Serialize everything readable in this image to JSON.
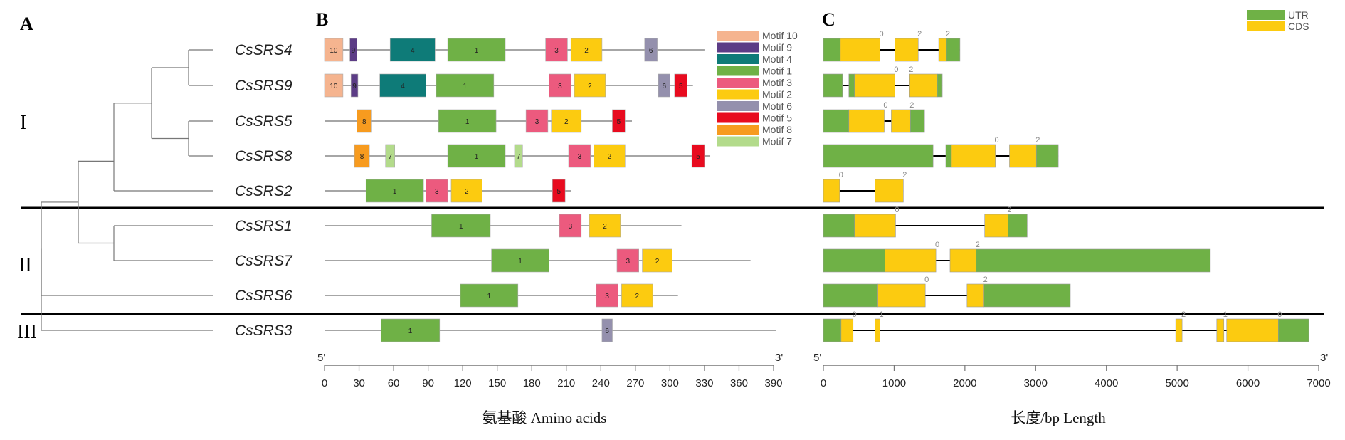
{
  "panels": {
    "A": "A",
    "B": "B",
    "C": "C"
  },
  "clades": [
    "I",
    "II",
    "III"
  ],
  "genes": [
    "CsSRS4",
    "CsSRS9",
    "CsSRS5",
    "CsSRS8",
    "CsSRS2",
    "CsSRS1",
    "CsSRS7",
    "CsSRS6",
    "CsSRS3"
  ],
  "chart_data": [
    {
      "type": "diagram",
      "panel": "A",
      "tree": "((((CsSRS4,CsSRS9),(CsSRS5,CsSRS8)),CsSRS2),(CsSRS1,CsSRS7)),CsSRS6),CsSRS3",
      "clades": [
        {
          "label": "I",
          "genes": [
            "CsSRS4",
            "CsSRS9",
            "CsSRS5",
            "CsSRS8",
            "CsSRS2"
          ]
        },
        {
          "label": "II",
          "genes": [
            "CsSRS1",
            "CsSRS7",
            "CsSRS6"
          ]
        },
        {
          "label": "III",
          "genes": [
            "CsSRS3"
          ]
        }
      ]
    },
    {
      "type": "bar",
      "panel": "B",
      "xlabel": "氨基酸 Amino acids",
      "xlim": [
        0,
        390
      ],
      "xticks": [
        0,
        30,
        60,
        90,
        120,
        150,
        180,
        210,
        240,
        270,
        300,
        330,
        360,
        390
      ],
      "start_label": "5'",
      "end_label": "3'",
      "legend": [
        {
          "name": "Motif 10",
          "id": "10",
          "color": "#f5b48f"
        },
        {
          "name": "Motif 9",
          "id": "9",
          "color": "#5c3c86"
        },
        {
          "name": "Motif 4",
          "id": "4",
          "color": "#0e7b78"
        },
        {
          "name": "Motif 1",
          "id": "1",
          "color": "#6fb146"
        },
        {
          "name": "Motif 3",
          "id": "3",
          "color": "#ec5a7e"
        },
        {
          "name": "Motif 2",
          "id": "2",
          "color": "#fccb10"
        },
        {
          "name": "Motif 6",
          "id": "6",
          "color": "#9490ad"
        },
        {
          "name": "Motif 5",
          "id": "5",
          "color": "#e80b1f"
        },
        {
          "name": "Motif 8",
          "id": "8",
          "color": "#f79b1f"
        },
        {
          "name": "Motif 7",
          "id": "7",
          "color": "#b3db8b"
        }
      ],
      "proteins": [
        {
          "gene": "CsSRS4",
          "length": 330,
          "motifs": [
            {
              "id": "10",
              "start": 0,
              "end": 16
            },
            {
              "id": "9",
              "start": 22,
              "end": 28
            },
            {
              "id": "4",
              "start": 57,
              "end": 96
            },
            {
              "id": "1",
              "start": 107,
              "end": 157
            },
            {
              "id": "3",
              "start": 192,
              "end": 211
            },
            {
              "id": "2",
              "start": 214,
              "end": 241
            },
            {
              "id": "6",
              "start": 278,
              "end": 289
            }
          ]
        },
        {
          "gene": "CsSRS9",
          "length": 320,
          "motifs": [
            {
              "id": "10",
              "start": 0,
              "end": 16
            },
            {
              "id": "9",
              "start": 23,
              "end": 29
            },
            {
              "id": "4",
              "start": 48,
              "end": 88
            },
            {
              "id": "1",
              "start": 97,
              "end": 147
            },
            {
              "id": "3",
              "start": 195,
              "end": 214
            },
            {
              "id": "2",
              "start": 217,
              "end": 244
            },
            {
              "id": "6",
              "start": 290,
              "end": 300
            },
            {
              "id": "5",
              "start": 304,
              "end": 315
            }
          ]
        },
        {
          "gene": "CsSRS5",
          "length": 267,
          "motifs": [
            {
              "id": "8",
              "start": 28,
              "end": 41
            },
            {
              "id": "1",
              "start": 99,
              "end": 149
            },
            {
              "id": "3",
              "start": 175,
              "end": 194
            },
            {
              "id": "2",
              "start": 197,
              "end": 223
            },
            {
              "id": "5",
              "start": 250,
              "end": 261
            }
          ]
        },
        {
          "gene": "CsSRS8",
          "length": 335,
          "motifs": [
            {
              "id": "8",
              "start": 26,
              "end": 39
            },
            {
              "id": "7",
              "start": 53,
              "end": 61
            },
            {
              "id": "1",
              "start": 107,
              "end": 157
            },
            {
              "id": "7",
              "start": 165,
              "end": 172
            },
            {
              "id": "3",
              "start": 212,
              "end": 231
            },
            {
              "id": "2",
              "start": 234,
              "end": 261
            },
            {
              "id": "5",
              "start": 319,
              "end": 330
            }
          ]
        },
        {
          "gene": "CsSRS2",
          "length": 214,
          "motifs": [
            {
              "id": "1",
              "start": 36,
              "end": 86
            },
            {
              "id": "3",
              "start": 88,
              "end": 107
            },
            {
              "id": "2",
              "start": 110,
              "end": 137
            },
            {
              "id": "5",
              "start": 198,
              "end": 209
            }
          ]
        },
        {
          "gene": "CsSRS1",
          "length": 310,
          "motifs": [
            {
              "id": "1",
              "start": 93,
              "end": 144
            },
            {
              "id": "3",
              "start": 204,
              "end": 223
            },
            {
              "id": "2",
              "start": 230,
              "end": 257
            }
          ]
        },
        {
          "gene": "CsSRS7",
          "length": 370,
          "motifs": [
            {
              "id": "1",
              "start": 145,
              "end": 195
            },
            {
              "id": "3",
              "start": 254,
              "end": 273
            },
            {
              "id": "2",
              "start": 276,
              "end": 302
            }
          ]
        },
        {
          "gene": "CsSRS6",
          "length": 307,
          "motifs": [
            {
              "id": "1",
              "start": 118,
              "end": 168
            },
            {
              "id": "3",
              "start": 236,
              "end": 255
            },
            {
              "id": "2",
              "start": 258,
              "end": 285
            }
          ]
        },
        {
          "gene": "CsSRS3",
          "length": 392,
          "motifs": [
            {
              "id": "1",
              "start": 49,
              "end": 100
            },
            {
              "id": "6",
              "start": 241,
              "end": 250
            }
          ]
        }
      ]
    },
    {
      "type": "bar",
      "panel": "C",
      "xlabel": "长度/bp Length",
      "xlim": [
        0,
        7000
      ],
      "xticks": [
        0,
        1000,
        2000,
        3000,
        4000,
        5000,
        6000,
        7000
      ],
      "start_label": "5'",
      "end_label": "3'",
      "legend": [
        {
          "name": "UTR",
          "color": "#6fb146"
        },
        {
          "name": "CDS",
          "color": "#fccb10"
        }
      ],
      "genes": [
        {
          "gene": "CsSRS4",
          "features": [
            {
              "type": "UTR",
              "start": 0,
              "end": 240
            },
            {
              "type": "CDS",
              "start": 240,
              "end": 800
            },
            {
              "type": "CDS",
              "start": 1010,
              "end": 1340
            },
            {
              "type": "CDS",
              "start": 1630,
              "end": 1740
            },
            {
              "type": "UTR",
              "start": 1740,
              "end": 1930
            }
          ],
          "phases": [
            {
              "pos": 820,
              "label": "0"
            },
            {
              "pos": 1360,
              "label": "2"
            },
            {
              "pos": 1760,
              "label": "2"
            }
          ]
        },
        {
          "gene": "CsSRS9",
          "features": [
            {
              "type": "UTR",
              "start": 0,
              "end": 270
            },
            {
              "type": "UTR",
              "start": 360,
              "end": 440
            },
            {
              "type": "CDS",
              "start": 440,
              "end": 1010
            },
            {
              "type": "CDS",
              "start": 1220,
              "end": 1610
            },
            {
              "type": "UTR",
              "start": 1610,
              "end": 1680
            }
          ],
          "phases": [
            {
              "pos": 1030,
              "label": "0"
            },
            {
              "pos": 1240,
              "label": "2"
            }
          ]
        },
        {
          "gene": "CsSRS5",
          "features": [
            {
              "type": "UTR",
              "start": 0,
              "end": 360
            },
            {
              "type": "CDS",
              "start": 360,
              "end": 860
            },
            {
              "type": "CDS",
              "start": 960,
              "end": 1230
            },
            {
              "type": "UTR",
              "start": 1230,
              "end": 1430
            }
          ],
          "phases": [
            {
              "pos": 880,
              "label": "0"
            },
            {
              "pos": 1250,
              "label": "2"
            }
          ]
        },
        {
          "gene": "CsSRS8",
          "features": [
            {
              "type": "UTR",
              "start": 0,
              "end": 1550
            },
            {
              "type": "UTR",
              "start": 1730,
              "end": 1810
            },
            {
              "type": "CDS",
              "start": 1810,
              "end": 2430
            },
            {
              "type": "CDS",
              "start": 2630,
              "end": 3010
            },
            {
              "type": "UTR",
              "start": 3010,
              "end": 3320
            }
          ],
          "phases": [
            {
              "pos": 2450,
              "label": "0"
            },
            {
              "pos": 3030,
              "label": "2"
            }
          ]
        },
        {
          "gene": "CsSRS2",
          "features": [
            {
              "type": "CDS",
              "start": 0,
              "end": 230
            },
            {
              "type": "CDS",
              "start": 730,
              "end": 1130
            }
          ],
          "phases": [
            {
              "pos": 250,
              "label": "0"
            },
            {
              "pos": 1150,
              "label": "2"
            }
          ]
        },
        {
          "gene": "CsSRS1",
          "features": [
            {
              "type": "UTR",
              "start": 0,
              "end": 440
            },
            {
              "type": "CDS",
              "start": 440,
              "end": 1020
            },
            {
              "type": "CDS",
              "start": 2280,
              "end": 2610
            },
            {
              "type": "UTR",
              "start": 2610,
              "end": 2880
            }
          ],
          "phases": [
            {
              "pos": 1040,
              "label": "0"
            },
            {
              "pos": 2630,
              "label": "2"
            }
          ]
        },
        {
          "gene": "CsSRS7",
          "features": [
            {
              "type": "UTR",
              "start": 0,
              "end": 870
            },
            {
              "type": "CDS",
              "start": 870,
              "end": 1590
            },
            {
              "type": "CDS",
              "start": 1790,
              "end": 2160
            },
            {
              "type": "UTR",
              "start": 2160,
              "end": 5470
            }
          ],
          "phases": [
            {
              "pos": 1610,
              "label": "0"
            },
            {
              "pos": 2180,
              "label": "2"
            }
          ]
        },
        {
          "gene": "CsSRS6",
          "features": [
            {
              "type": "UTR",
              "start": 0,
              "end": 770
            },
            {
              "type": "CDS",
              "start": 770,
              "end": 1440
            },
            {
              "type": "CDS",
              "start": 2030,
              "end": 2270
            },
            {
              "type": "UTR",
              "start": 2270,
              "end": 3490
            }
          ],
          "phases": [
            {
              "pos": 1460,
              "label": "0"
            },
            {
              "pos": 2290,
              "label": "2"
            }
          ]
        },
        {
          "gene": "CsSRS3",
          "features": [
            {
              "type": "UTR",
              "start": 0,
              "end": 250
            },
            {
              "type": "CDS",
              "start": 250,
              "end": 420
            },
            {
              "type": "CDS",
              "start": 730,
              "end": 800
            },
            {
              "type": "CDS",
              "start": 4980,
              "end": 5070
            },
            {
              "type": "CDS",
              "start": 5560,
              "end": 5660
            },
            {
              "type": "CDS",
              "start": 5700,
              "end": 6430
            },
            {
              "type": "UTR",
              "start": 6430,
              "end": 6860
            }
          ],
          "phases": [
            {
              "pos": 440,
              "label": "0"
            },
            {
              "pos": 820,
              "label": "1"
            },
            {
              "pos": 5090,
              "label": "2"
            },
            {
              "pos": 5680,
              "label": "1"
            },
            {
              "pos": 6450,
              "label": "0"
            }
          ]
        }
      ]
    }
  ]
}
